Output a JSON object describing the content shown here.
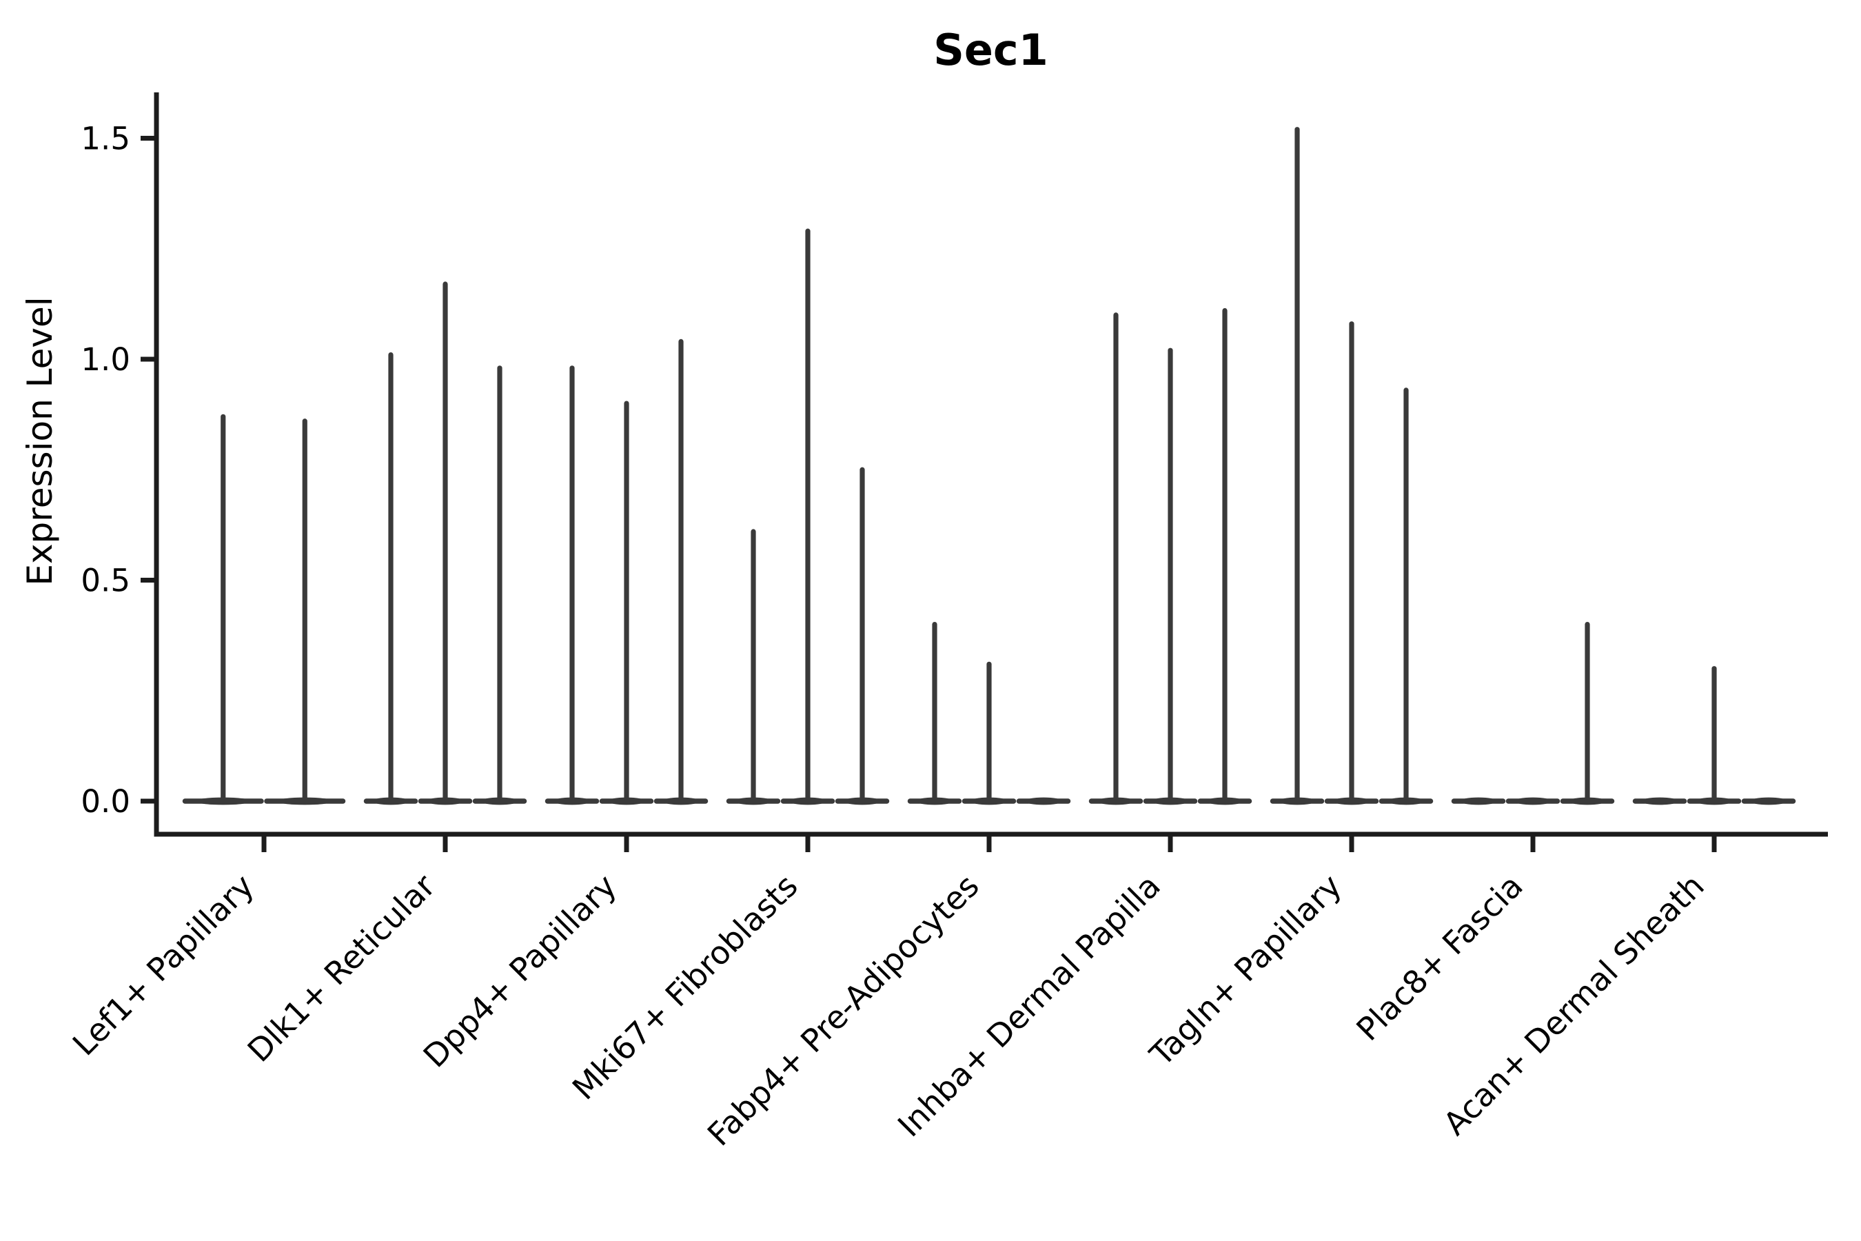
{
  "chart_data": {
    "type": "violin",
    "title": "Sec1",
    "xlabel": "",
    "ylabel": "Expression Level",
    "ylim": [
      -0.075,
      1.6
    ],
    "yticks": [
      0.0,
      0.5,
      1.0,
      1.5
    ],
    "ytick_labels": [
      "0.0",
      "0.5",
      "1.0",
      "1.5"
    ],
    "grid": false,
    "legend": false,
    "note": "Each category holds 2-3 very thin violins: a flat lens at 0 plus a vertical spike whose top is the max expression; 0 means an all-zero flat violin with no spike.",
    "categories": [
      "Lef1+ Papillary",
      "Dlk1+ Reticular",
      "Dpp4+ Papillary",
      "Mki67+ Fibroblasts",
      "Fabp4+ Pre-Adipocytes",
      "Inhba+ Dermal Papilla",
      "Tagln+ Papillary",
      "Plac8+ Fascia",
      "Acan+ Dermal Sheath"
    ],
    "groups": [
      {
        "category": "Lef1+ Papillary",
        "violin_maxima": [
          0.87,
          0.86
        ]
      },
      {
        "category": "Dlk1+ Reticular",
        "violin_maxima": [
          1.01,
          1.17,
          0.98
        ]
      },
      {
        "category": "Dpp4+ Papillary",
        "violin_maxima": [
          0.98,
          0.9,
          1.04
        ]
      },
      {
        "category": "Mki67+ Fibroblasts",
        "violin_maxima": [
          0.61,
          1.29,
          0.75
        ]
      },
      {
        "category": "Fabp4+ Pre-Adipocytes",
        "violin_maxima": [
          0.4,
          0.31,
          0
        ]
      },
      {
        "category": "Inhba+ Dermal Papilla",
        "violin_maxima": [
          1.1,
          1.02,
          1.11
        ]
      },
      {
        "category": "Tagln+ Papillary",
        "violin_maxima": [
          1.52,
          1.08,
          0.93
        ]
      },
      {
        "category": "Plac8+ Fascia",
        "violin_maxima": [
          0,
          0,
          0.4
        ]
      },
      {
        "category": "Acan+ Dermal Sheath",
        "violin_maxima": [
          0,
          0.3,
          0
        ]
      }
    ],
    "colors": {
      "violin": "#3a3a3a",
      "axis": "#1c1c1c",
      "text": "#000000",
      "background": "#ffffff"
    }
  }
}
